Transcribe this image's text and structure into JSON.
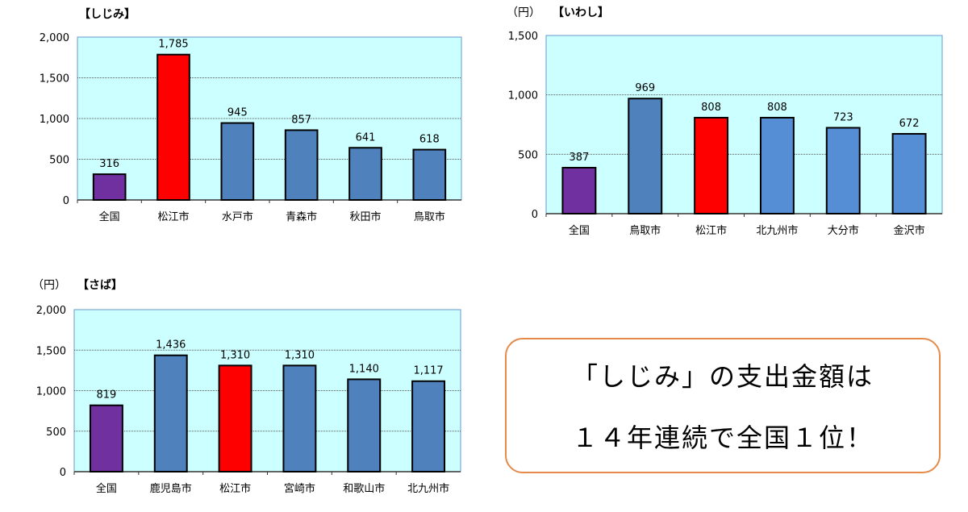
{
  "chart_data": [
    {
      "type": "bar",
      "title": "【しじみ】",
      "unit": "",
      "categories": [
        "全国",
        "松江市",
        "水戸市",
        "青森市",
        "秋田市",
        "鳥取市"
      ],
      "values": [
        316,
        1785,
        945,
        857,
        641,
        618
      ],
      "data_labels": [
        "316",
        "1,785",
        "945",
        "857",
        "641",
        "618"
      ],
      "colors": [
        "#7030a0",
        "#ff0000",
        "#4f81bd",
        "#4f81bd",
        "#4f81bd",
        "#4f81bd"
      ],
      "ylim": [
        0,
        2000
      ],
      "yticks": [
        "0",
        "500",
        "1,000",
        "1,500",
        "2,000"
      ],
      "grid": true,
      "plot_bg": "#ccffff"
    },
    {
      "type": "bar",
      "title": "【いわし】",
      "unit": "（円）",
      "categories": [
        "全国",
        "鳥取市",
        "松江市",
        "北九州市",
        "大分市",
        "金沢市"
      ],
      "values": [
        387,
        969,
        808,
        808,
        723,
        672
      ],
      "data_labels": [
        "387",
        "969",
        "808",
        "808",
        "723",
        "672"
      ],
      "colors": [
        "#7030a0",
        "#4f81bd",
        "#ff0000",
        "#558ed5",
        "#558ed5",
        "#558ed5"
      ],
      "ylim": [
        0,
        1500
      ],
      "yticks": [
        "0",
        "500",
        "1,000",
        "1,500"
      ],
      "grid": true,
      "plot_bg": "#ccffff"
    },
    {
      "type": "bar",
      "title": "【さば】",
      "unit": "（円）",
      "categories": [
        "全国",
        "鹿児島市",
        "松江市",
        "宮崎市",
        "和歌山市",
        "北九州市"
      ],
      "values": [
        819,
        1436,
        1310,
        1310,
        1140,
        1117
      ],
      "data_labels": [
        "819",
        "1,436",
        "1,310",
        "1,310",
        "1,140",
        "1,117"
      ],
      "colors": [
        "#7030a0",
        "#4f81bd",
        "#ff0000",
        "#4f81bd",
        "#4f81bd",
        "#4f81bd"
      ],
      "ylim": [
        0,
        2000
      ],
      "yticks": [
        "0",
        "500",
        "1,000",
        "1,500",
        "2,000"
      ],
      "grid": true,
      "plot_bg": "#ccffff"
    }
  ],
  "callout": {
    "line1": "「しじみ」の支出金額は",
    "line2": "１４年連続で全国１位！",
    "border_color": "#e58a4a"
  }
}
